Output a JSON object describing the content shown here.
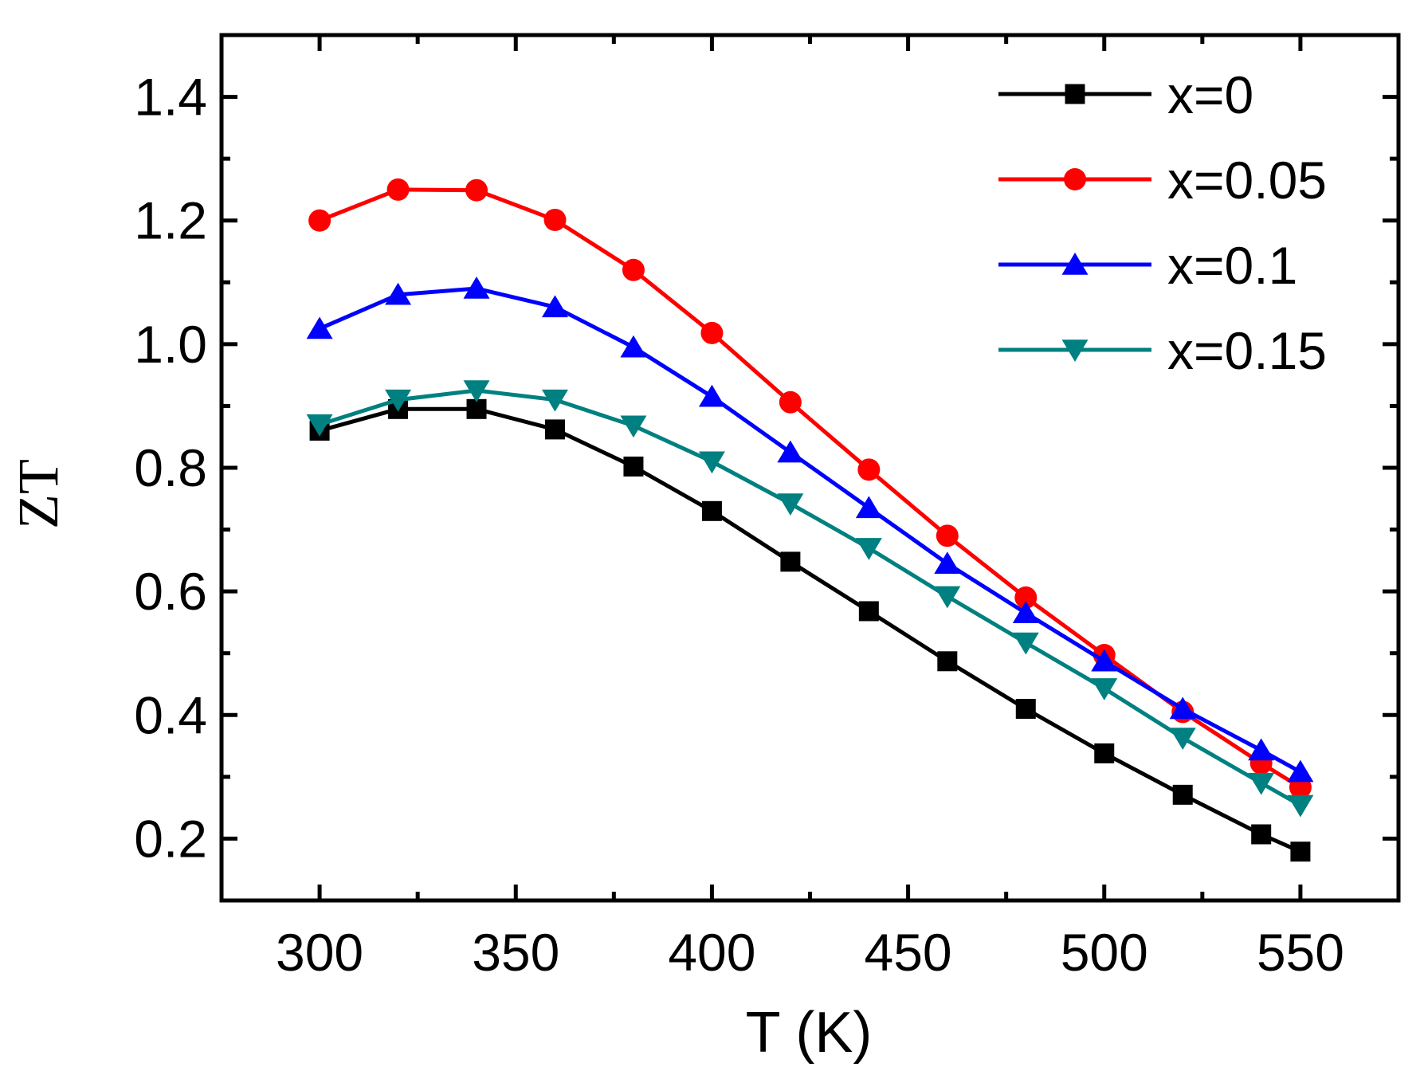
{
  "chart_data": {
    "type": "line",
    "title": "",
    "xlabel": "T (K)",
    "ylabel": "ZT",
    "xlim": [
      275,
      575
    ],
    "ylim": [
      0.1,
      1.5
    ],
    "xticks": [
      300,
      350,
      400,
      450,
      500,
      550
    ],
    "xtick_labels": [
      "300",
      "350",
      "400",
      "450",
      "500",
      "550"
    ],
    "yticks": [
      0.2,
      0.4,
      0.6,
      0.8,
      1.0,
      1.2,
      1.4
    ],
    "ytick_labels": [
      "0.2",
      "0.4",
      "0.6",
      "0.8",
      "1.0",
      "1.2",
      "1.4"
    ],
    "grid": false,
    "legend_position": "top-right",
    "x": [
      300,
      320,
      340,
      360,
      380,
      400,
      420,
      440,
      460,
      480,
      500,
      520,
      540,
      550
    ],
    "series": [
      {
        "name": "x=0",
        "color": "#000000",
        "marker": "square",
        "values": [
          0.86,
          0.895,
          0.895,
          0.862,
          0.802,
          0.73,
          0.648,
          0.568,
          0.487,
          0.41,
          0.338,
          0.271,
          0.207,
          0.179
        ]
      },
      {
        "name": "x=0.05",
        "color": "#ff0000",
        "marker": "circle",
        "values": [
          1.2,
          1.25,
          1.249,
          1.201,
          1.12,
          1.018,
          0.906,
          0.797,
          0.69,
          0.59,
          0.497,
          0.405,
          0.322,
          0.283
        ]
      },
      {
        "name": "x=0.1",
        "color": "#0000ff",
        "marker": "triangle-up",
        "values": [
          1.025,
          1.08,
          1.09,
          1.06,
          0.995,
          0.915,
          0.825,
          0.735,
          0.645,
          0.565,
          0.487,
          0.41,
          0.343,
          0.308
        ]
      },
      {
        "name": "x=0.15",
        "color": "#008080",
        "marker": "triangle-down",
        "values": [
          0.87,
          0.91,
          0.925,
          0.91,
          0.868,
          0.81,
          0.742,
          0.67,
          0.592,
          0.517,
          0.443,
          0.363,
          0.29,
          0.254
        ]
      }
    ]
  }
}
